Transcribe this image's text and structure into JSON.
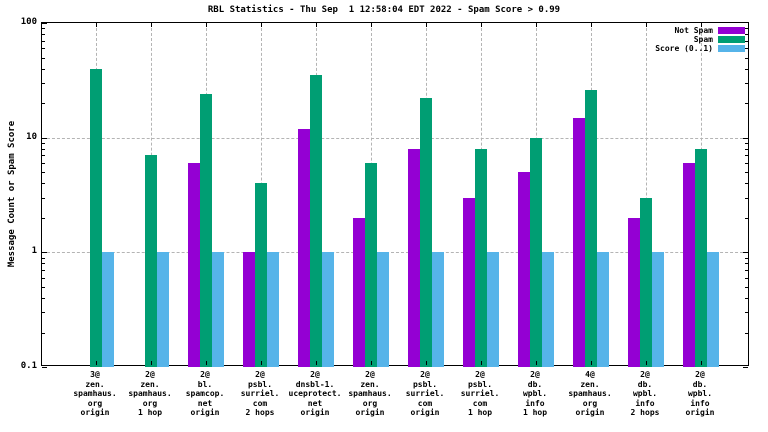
{
  "chart_data": {
    "type": "bar",
    "title": "RBL Statistics - Thu Sep  1 12:58:04 EDT 2022 - Spam Score > 0.99",
    "ylabel": "Message Count or Spam Score",
    "xlabel": "",
    "yscale": "log",
    "ylim": [
      0.1,
      100
    ],
    "yticks": [
      {
        "label": "100",
        "value": 100
      },
      {
        "label": "10",
        "value": 10
      },
      {
        "label": "1",
        "value": 1
      },
      {
        "label": "0.1",
        "value": 0.1
      }
    ],
    "grid": true,
    "legend_position": "top-right-inside",
    "categories": [
      [
        "3@",
        "zen.",
        "spamhaus.",
        "org",
        "origin"
      ],
      [
        "2@",
        "zen.",
        "spamhaus.",
        "org",
        "1 hop"
      ],
      [
        "2@",
        "bl.",
        "spamcop.",
        "net",
        "origin"
      ],
      [
        "2@",
        "psbl.",
        "surriel.",
        "com",
        "2 hops"
      ],
      [
        "2@",
        "dnsbl-1.",
        "uceprotect.",
        "net",
        "origin"
      ],
      [
        "2@",
        "zen.",
        "spamhaus.",
        "org",
        "origin"
      ],
      [
        "2@",
        "psbl.",
        "surriel.",
        "com",
        "origin"
      ],
      [
        "2@",
        "psbl.",
        "surriel.",
        "com",
        "1 hop"
      ],
      [
        "2@",
        "db.",
        "wpbl.",
        "info",
        "1 hop"
      ],
      [
        "4@",
        "zen.",
        "spamhaus.",
        "org",
        "origin"
      ],
      [
        "2@",
        "db.",
        "wpbl.",
        "info",
        "2 hops"
      ],
      [
        "2@",
        "db.",
        "wpbl.",
        "info",
        "origin"
      ]
    ],
    "series": [
      {
        "name": "Not Spam",
        "color": "#9400d3",
        "values": [
          null,
          null,
          6,
          1,
          12,
          2,
          8,
          3,
          5,
          15,
          2,
          6
        ]
      },
      {
        "name": "Spam",
        "color": "#009e73",
        "values": [
          40,
          7,
          24,
          4,
          35,
          6,
          22,
          8,
          10,
          26,
          3,
          8
        ]
      },
      {
        "name": "Score (0..1)",
        "color": "#56b4e9",
        "values": [
          1,
          1,
          1,
          1,
          1,
          1,
          1,
          1,
          1,
          1,
          1,
          1
        ]
      }
    ]
  },
  "colors": {
    "background": "#ffffff",
    "axis": "#000000",
    "grid": "#b4b4b4",
    "not_spam": "#9400d3",
    "spam": "#009e73",
    "score": "#56b4e9"
  }
}
